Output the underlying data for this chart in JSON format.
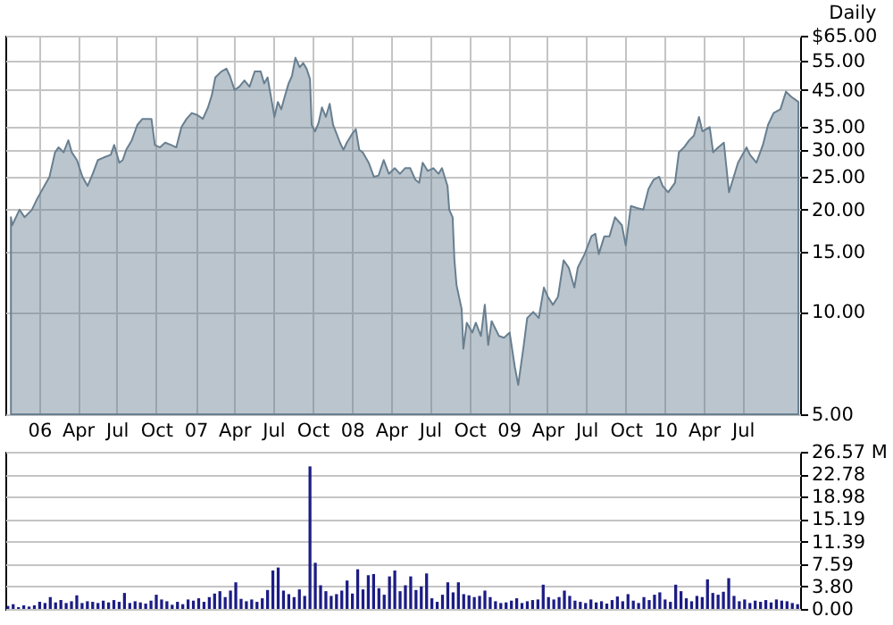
{
  "chart_data": [
    {
      "type": "area",
      "annotations": [
        "Daily"
      ],
      "color": "#687f90",
      "log": "y",
      "grid": true,
      "xlim": [
        "2005-10-14",
        "2010-11-12"
      ],
      "xticks": [
        {
          "value": "2006-01-01",
          "label": "06"
        },
        {
          "value": "2006-04-01",
          "label": "Apr"
        },
        {
          "value": "2006-07-01",
          "label": "Jul"
        },
        {
          "value": "2006-10-01",
          "label": "Oct"
        },
        {
          "value": "2007-01-01",
          "label": "07"
        },
        {
          "value": "2007-04-01",
          "label": "Apr"
        },
        {
          "value": "2007-07-01",
          "label": "Jul"
        },
        {
          "value": "2007-10-01",
          "label": "Oct"
        },
        {
          "value": "2008-01-01",
          "label": "08"
        },
        {
          "value": "2008-04-01",
          "label": "Apr"
        },
        {
          "value": "2008-07-01",
          "label": "Jul"
        },
        {
          "value": "2008-10-01",
          "label": "Oct"
        },
        {
          "value": "2009-01-01",
          "label": "09"
        },
        {
          "value": "2009-04-01",
          "label": "Apr"
        },
        {
          "value": "2009-07-01",
          "label": "Jul"
        },
        {
          "value": "2009-10-01",
          "label": "Oct"
        },
        {
          "value": "2010-01-01",
          "label": "10"
        },
        {
          "value": "2010-04-01",
          "label": "Apr"
        },
        {
          "value": "2010-07-01",
          "label": "Jul"
        }
      ],
      "ylim": [
        5,
        65
      ],
      "yticks": [
        {
          "value": 5,
          "label": "5.00"
        },
        {
          "value": 10,
          "label": "10.00"
        },
        {
          "value": 15,
          "label": "15.00"
        },
        {
          "value": 20,
          "label": "20.00"
        },
        {
          "value": 25,
          "label": "25.00"
        },
        {
          "value": 30,
          "label": "30.00"
        },
        {
          "value": 35,
          "label": "35.00"
        },
        {
          "value": 45,
          "label": "45.00"
        },
        {
          "value": 55,
          "label": "55.00"
        },
        {
          "value": 65,
          "label": "$65.00"
        }
      ],
      "x": [
        "2005-10-27",
        "2005-10-30",
        "2005-11-16",
        "2005-11-28",
        "2005-12-15",
        "2005-12-27",
        "2006-01-13",
        "2006-01-25",
        "2006-02-07",
        "2006-02-15",
        "2006-02-27",
        "2006-03-10",
        "2006-03-18",
        "2006-03-30",
        "2006-04-12",
        "2006-04-24",
        "2006-05-06",
        "2006-05-18",
        "2006-06-01",
        "2006-06-17",
        "2006-06-25",
        "2006-07-07",
        "2006-07-15",
        "2006-07-23",
        "2006-08-05",
        "2006-08-18",
        "2006-08-30",
        "2006-09-12",
        "2006-09-20",
        "2006-09-28",
        "2006-10-10",
        "2006-10-22",
        "2006-11-05",
        "2006-11-17",
        "2006-11-29",
        "2006-12-11",
        "2006-12-23",
        "2007-01-05",
        "2007-01-18",
        "2007-01-30",
        "2007-02-08",
        "2007-02-16",
        "2007-03-02",
        "2007-03-14",
        "2007-03-22",
        "2007-04-02",
        "2007-04-13",
        "2007-04-25",
        "2007-05-07",
        "2007-05-19",
        "2007-06-02",
        "2007-06-10",
        "2007-06-18",
        "2007-06-26",
        "2007-07-04",
        "2007-07-12",
        "2007-07-20",
        "2007-07-28",
        "2007-08-06",
        "2007-08-14",
        "2007-08-22",
        "2007-09-01",
        "2007-09-09",
        "2007-09-17",
        "2007-09-25",
        "2007-09-29",
        "2007-10-07",
        "2007-10-15",
        "2007-10-23",
        "2007-11-01",
        "2007-11-10",
        "2007-11-18",
        "2007-11-26",
        "2007-12-04",
        "2007-12-12",
        "2007-12-20",
        "2008-01-02",
        "2008-01-10",
        "2008-01-18",
        "2008-01-26",
        "2008-02-09",
        "2008-02-21",
        "2008-03-03",
        "2008-03-15",
        "2008-03-27",
        "2008-04-10",
        "2008-04-22",
        "2008-05-04",
        "2008-05-16",
        "2008-05-28",
        "2008-06-06",
        "2008-06-14",
        "2008-06-26",
        "2008-07-09",
        "2008-07-21",
        "2008-07-29",
        "2008-08-11",
        "2008-08-15",
        "2008-08-23",
        "2008-08-27",
        "2008-09-01",
        "2008-09-13",
        "2008-09-17",
        "2008-09-25",
        "2008-10-08",
        "2008-10-16",
        "2008-10-28",
        "2008-11-06",
        "2008-11-14",
        "2008-11-22",
        "2008-12-09",
        "2008-12-21",
        "2009-01-03",
        "2009-01-15",
        "2009-01-23",
        "2009-02-05",
        "2009-02-13",
        "2009-02-27",
        "2009-03-12",
        "2009-03-24",
        "2009-04-02",
        "2009-04-14",
        "2009-04-26",
        "2009-05-09",
        "2009-05-21",
        "2009-06-03",
        "2009-06-11",
        "2009-06-27",
        "2009-07-13",
        "2009-07-22",
        "2009-07-30",
        "2009-08-12",
        "2009-08-24",
        "2009-09-06",
        "2009-09-22",
        "2009-10-01",
        "2009-10-13",
        "2009-10-29",
        "2009-11-11",
        "2009-11-23",
        "2009-12-05",
        "2009-12-18",
        "2009-12-26",
        "2010-01-08",
        "2010-01-24",
        "2010-02-02",
        "2010-02-14",
        "2010-02-26",
        "2010-03-09",
        "2010-03-21",
        "2010-03-29",
        "2010-04-15",
        "2010-04-23",
        "2010-05-05",
        "2010-05-18",
        "2010-05-30",
        "2010-06-08",
        "2010-06-20",
        "2010-07-10",
        "2010-07-18",
        "2010-08-02",
        "2010-08-17",
        "2010-08-29",
        "2010-09-11",
        "2010-09-27",
        "2010-10-10",
        "2010-10-22",
        "2010-11-08"
      ],
      "values": [
        19,
        18,
        20,
        19,
        20,
        21.5,
        23.5,
        25,
        29.5,
        30.5,
        29.5,
        32,
        29.5,
        28,
        25,
        23.5,
        25.5,
        28,
        28.5,
        29,
        31,
        27.5,
        28,
        30,
        32,
        35.5,
        37,
        37,
        37,
        31,
        30.5,
        31.5,
        31,
        30.5,
        35,
        37,
        38.5,
        38,
        37,
        40,
        43.5,
        49,
        51,
        52,
        49.5,
        45,
        46,
        48,
        46,
        51,
        51,
        47,
        49,
        43,
        37.5,
        41.5,
        39.5,
        43,
        47,
        49.5,
        56,
        52.5,
        54,
        52,
        48.5,
        35.5,
        34,
        36,
        40,
        37.5,
        41,
        35.5,
        33.5,
        31.5,
        30,
        31.5,
        33.5,
        34.5,
        30,
        29.5,
        27.5,
        25,
        25.2,
        28,
        25.5,
        26.5,
        25.5,
        26.5,
        26.5,
        24.5,
        24,
        27.5,
        26,
        26.5,
        25.5,
        26.5,
        23.5,
        20,
        19,
        14.3,
        12,
        10.2,
        7.8,
        9.3,
        8.7,
        9.3,
        8.5,
        10.5,
        8,
        9.4,
        8.5,
        8.4,
        8.7,
        6.9,
        6.1,
        8,
        9.6,
        10,
        9.6,
        11.8,
        11.1,
        10.5,
        11.1,
        14.2,
        13.5,
        11.8,
        13.5,
        14.8,
        16.7,
        17,
        14.8,
        16.7,
        16.7,
        19,
        18,
        15.7,
        20.5,
        20.2,
        20,
        23,
        24.5,
        25,
        23.5,
        22.5,
        24,
        29.5,
        30.5,
        32,
        33,
        37.5,
        34,
        35,
        29.5,
        30.5,
        31.5,
        22.5,
        24.5,
        27.5,
        30.5,
        29,
        27.5,
        31,
        35.5,
        38.5,
        39.5,
        44.5,
        43,
        41.5
      ]
    },
    {
      "type": "bar",
      "color": "#1c1c85",
      "grid": "y",
      "tick_labels": "y",
      "categories": [
        null,
        null,
        null,
        null,
        null,
        null,
        null,
        null,
        null,
        null,
        null,
        null,
        null,
        null,
        null,
        null,
        null,
        null,
        null,
        null,
        null,
        null,
        null,
        null,
        null,
        null,
        null,
        null,
        null,
        null,
        null,
        null,
        null,
        null,
        null,
        null,
        null,
        null,
        null,
        null,
        null,
        null,
        null,
        null,
        null,
        null,
        null,
        null,
        null,
        null,
        null,
        null,
        null,
        null,
        null,
        null,
        null,
        null,
        null,
        null,
        null,
        null,
        null,
        null,
        null,
        null,
        null,
        null,
        null,
        null,
        null,
        null,
        null,
        null,
        null,
        null,
        null,
        null,
        null,
        null,
        null,
        null,
        null,
        null,
        null,
        null,
        null,
        null,
        null,
        null,
        null,
        null,
        null,
        null,
        null,
        null,
        null,
        null,
        null,
        null,
        null,
        null,
        null,
        null,
        null,
        null,
        null,
        null,
        null,
        null,
        null,
        null,
        null,
        null,
        null,
        null,
        null,
        null,
        null,
        null,
        null,
        null,
        null,
        null,
        null,
        null,
        null,
        null,
        null,
        null,
        null,
        null,
        null,
        null,
        null,
        null,
        null,
        null,
        null,
        null,
        null,
        null,
        null,
        null,
        null,
        null,
        null,
        null,
        null,
        null
      ],
      "ylim": [
        0,
        26.57
      ],
      "yticks": [
        {
          "value": 0,
          "label": "0.00"
        },
        {
          "value": 3.8,
          "label": "3.80"
        },
        7.59,
        11.39,
        15.19,
        18.98,
        22.78,
        {
          "value": 26.57,
          "label": "26.57 M"
        }
      ],
      "values": [
        0.5,
        0.8,
        0.3,
        0.6,
        0.4,
        0.6,
        1.2,
        1.0,
        2.0,
        1.1,
        1.5,
        1.0,
        1.3,
        2.3,
        1.0,
        1.3,
        1.2,
        1.0,
        1.4,
        1.1,
        1.5,
        1.2,
        2.7,
        1.0,
        1.3,
        1.1,
        0.9,
        1.4,
        2.4,
        1.6,
        1.3,
        0.7,
        1.2,
        0.8,
        1.6,
        1.4,
        1.8,
        1.2,
        2.0,
        2.6,
        3.0,
        2.0,
        3.1,
        4.5,
        1.7,
        1.3,
        1.6,
        1.2,
        1.8,
        3.2,
        6.5,
        7.0,
        3.1,
        2.5,
        2.0,
        3.3,
        2.2,
        24.1,
        7.8,
        4.0,
        3.0,
        2.2,
        2.5,
        3.1,
        4.8,
        2.6,
        6.7,
        3.3,
        5.7,
        5.9,
        3.5,
        2.4,
        5.5,
        6.5,
        3.0,
        4.0,
        5.5,
        3.2,
        3.8,
        6.0,
        1.8,
        1.2,
        2.4,
        4.5,
        2.8,
        4.5,
        2.5,
        2.3,
        2.0,
        2.2,
        3.1,
        2.0,
        1.3,
        1.0,
        1.1,
        1.4,
        1.8,
        1.0,
        1.3,
        1.5,
        1.6,
        4.1,
        2.0,
        1.6,
        2.0,
        3.1,
        2.2,
        1.4,
        1.2,
        1.0,
        1.6,
        1.1,
        1.3,
        0.9,
        1.5,
        2.1,
        1.3,
        2.5,
        1.4,
        1.0,
        2.0,
        1.5,
        2.4,
        2.8,
        1.6,
        1.2,
        4.1,
        3.0,
        1.8,
        1.3,
        2.2,
        2.0,
        5.0,
        2.7,
        2.4,
        2.9,
        5.2,
        2.2,
        1.3,
        1.6,
        1.0,
        1.4,
        1.2,
        1.5,
        1.1,
        1.6,
        1.4,
        1.3,
        1.0,
        0.8
      ]
    }
  ]
}
